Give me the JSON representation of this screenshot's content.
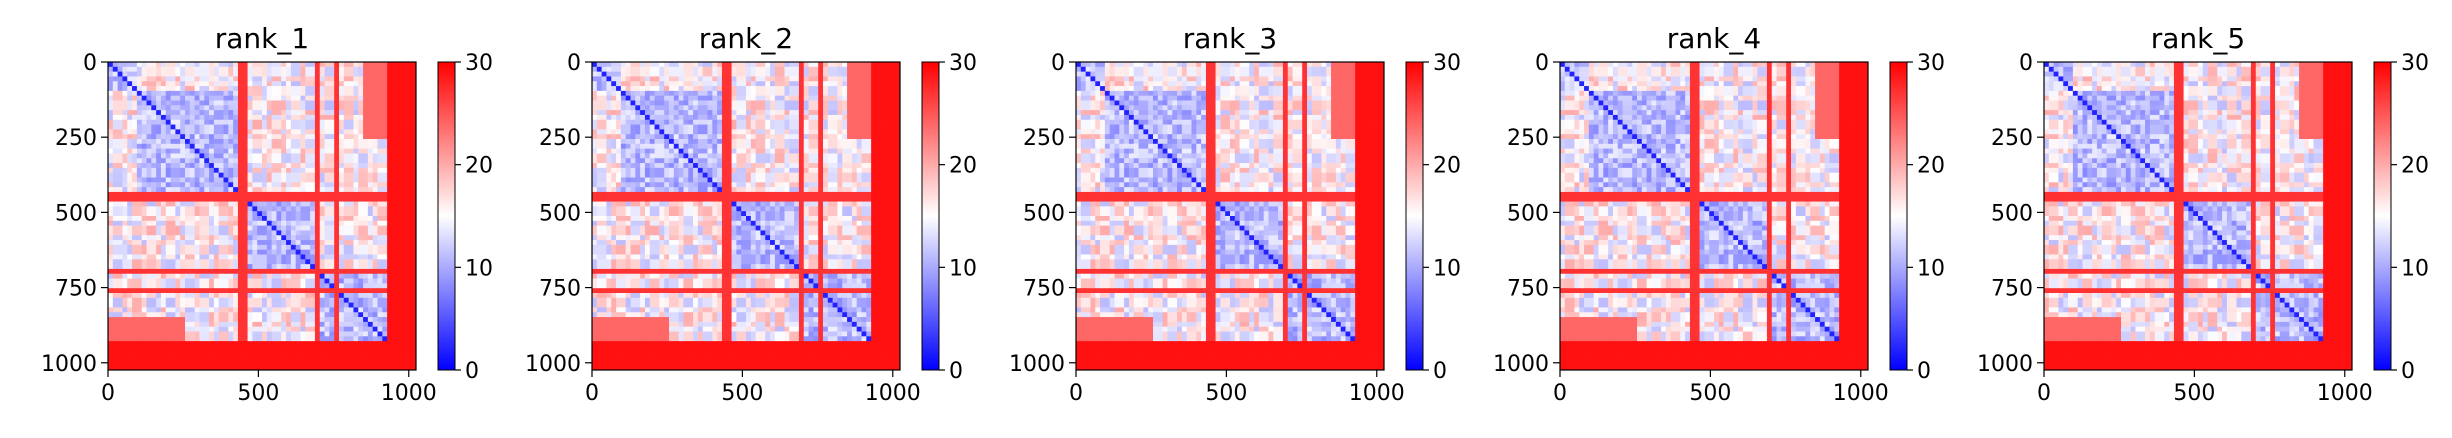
{
  "figure": {
    "background": "#ffffff"
  },
  "chart_data": [
    {
      "type": "heatmap",
      "title": "rank_1",
      "xlabel": "",
      "ylabel": "",
      "xlim": [
        0,
        1024
      ],
      "ylim": [
        1024,
        0
      ],
      "xticks": [
        0,
        500,
        1000
      ],
      "yticks": [
        0,
        250,
        500,
        750,
        1000
      ],
      "xtick_labels": [
        "0",
        "500",
        "1000"
      ],
      "ytick_labels": [
        "0",
        "250",
        "500",
        "750",
        "1000"
      ],
      "matrix_size": 1024,
      "colorbar": {
        "min": 0,
        "max": 30,
        "ticks": [
          0,
          10,
          20,
          30
        ],
        "tick_labels": [
          "0",
          "10",
          "20",
          "30"
        ],
        "colormap": "bwr",
        "colors": [
          "#0000ff",
          "#ffffff",
          "#ff0000"
        ]
      }
    },
    {
      "type": "heatmap",
      "title": "rank_2",
      "xlabel": "",
      "ylabel": "",
      "xlim": [
        0,
        1024
      ],
      "ylim": [
        1024,
        0
      ],
      "xticks": [
        0,
        500,
        1000
      ],
      "yticks": [
        0,
        250,
        500,
        750,
        1000
      ],
      "xtick_labels": [
        "0",
        "500",
        "1000"
      ],
      "ytick_labels": [
        "0",
        "250",
        "500",
        "750",
        "1000"
      ],
      "matrix_size": 1024,
      "colorbar": {
        "min": 0,
        "max": 30,
        "ticks": [
          0,
          10,
          20,
          30
        ],
        "tick_labels": [
          "0",
          "10",
          "20",
          "30"
        ],
        "colormap": "bwr",
        "colors": [
          "#0000ff",
          "#ffffff",
          "#ff0000"
        ]
      }
    },
    {
      "type": "heatmap",
      "title": "rank_3",
      "xlabel": "",
      "ylabel": "",
      "xlim": [
        0,
        1024
      ],
      "ylim": [
        1024,
        0
      ],
      "xticks": [
        0,
        500,
        1000
      ],
      "yticks": [
        0,
        250,
        500,
        750,
        1000
      ],
      "xtick_labels": [
        "0",
        "500",
        "1000"
      ],
      "ytick_labels": [
        "0",
        "250",
        "500",
        "750",
        "1000"
      ],
      "matrix_size": 1024,
      "colorbar": {
        "min": 0,
        "max": 30,
        "ticks": [
          0,
          10,
          20,
          30
        ],
        "tick_labels": [
          "0",
          "10",
          "20",
          "30"
        ],
        "colormap": "bwr",
        "colors": [
          "#0000ff",
          "#ffffff",
          "#ff0000"
        ]
      }
    },
    {
      "type": "heatmap",
      "title": "rank_4",
      "xlabel": "",
      "ylabel": "",
      "xlim": [
        0,
        1024
      ],
      "ylim": [
        1024,
        0
      ],
      "xticks": [
        0,
        500,
        1000
      ],
      "yticks": [
        0,
        250,
        500,
        750,
        1000
      ],
      "xtick_labels": [
        "0",
        "500",
        "1000"
      ],
      "ytick_labels": [
        "0",
        "250",
        "500",
        "750",
        "1000"
      ],
      "matrix_size": 1024,
      "colorbar": {
        "min": 0,
        "max": 30,
        "ticks": [
          0,
          10,
          20,
          30
        ],
        "tick_labels": [
          "0",
          "10",
          "20",
          "30"
        ],
        "colormap": "bwr",
        "colors": [
          "#0000ff",
          "#ffffff",
          "#ff0000"
        ]
      }
    },
    {
      "type": "heatmap",
      "title": "rank_5",
      "xlabel": "",
      "ylabel": "",
      "xlim": [
        0,
        1024
      ],
      "ylim": [
        1024,
        0
      ],
      "xticks": [
        0,
        500,
        1000
      ],
      "yticks": [
        0,
        250,
        500,
        750,
        1000
      ],
      "xtick_labels": [
        "0",
        "500",
        "1000"
      ],
      "ytick_labels": [
        "0",
        "250",
        "500",
        "750",
        "1000"
      ],
      "matrix_size": 1024,
      "colorbar": {
        "min": 0,
        "max": 30,
        "ticks": [
          0,
          10,
          20,
          30
        ],
        "tick_labels": [
          "0",
          "10",
          "20",
          "30"
        ],
        "colormap": "bwr",
        "colors": [
          "#0000ff",
          "#ffffff",
          "#ff0000"
        ]
      }
    }
  ]
}
